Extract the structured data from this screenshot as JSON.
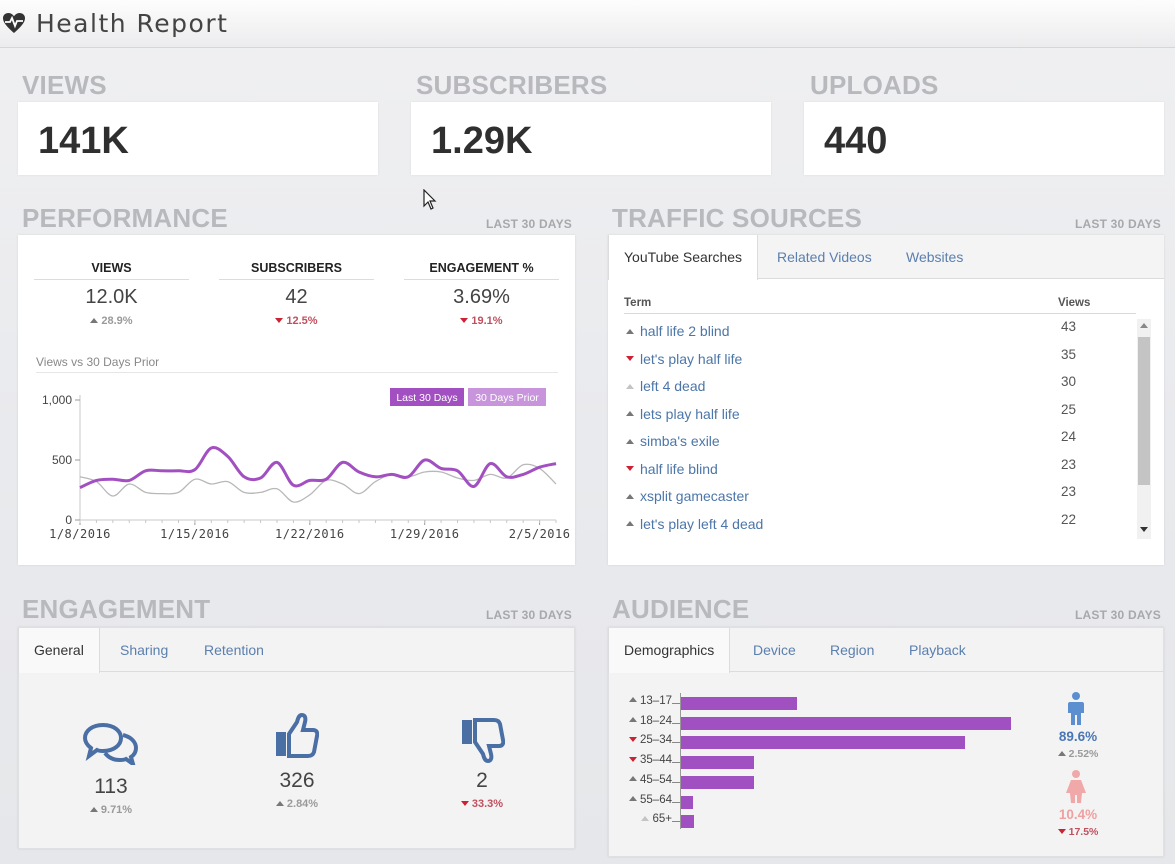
{
  "header": {
    "title": "Health Report",
    "icon": "heart-pulse-icon"
  },
  "stats": [
    {
      "label": "VIEWS",
      "value": "141K"
    },
    {
      "label": "SUBSCRIBERS",
      "value": "1.29K"
    },
    {
      "label": "UPLOADS",
      "value": "440"
    }
  ],
  "performance": {
    "title": "PERFORMANCE",
    "period": "LAST 30 DAYS",
    "metrics": [
      {
        "label": "VIEWS",
        "value": "12.0K",
        "delta": "28.9%",
        "trend": "up"
      },
      {
        "label": "SUBSCRIBERS",
        "value": "42",
        "delta": "12.5%",
        "trend": "down"
      },
      {
        "label": "ENGAGEMENT %",
        "value": "3.69%",
        "delta": "19.1%",
        "trend": "down"
      }
    ],
    "chart_label": "Views vs 30 Days Prior",
    "legend": [
      "Last 30 Days",
      "30 Days Prior"
    ]
  },
  "chart_data": {
    "type": "line",
    "title": "Views vs 30 Days Prior",
    "xlabel": "",
    "ylabel": "",
    "ylim": [
      0,
      1000
    ],
    "yticks": [
      "0",
      "500",
      "1,000"
    ],
    "xticks": [
      "1/8/2016",
      "1/15/2016",
      "1/22/2016",
      "1/29/2016",
      "2/5/2016"
    ],
    "x_start": "2016-01-08",
    "x_end": "2016-02-06",
    "series": [
      {
        "name": "Last 30 Days",
        "color": "#a24fc1",
        "values": [
          270,
          330,
          340,
          330,
          410,
          410,
          410,
          420,
          600,
          530,
          360,
          350,
          480,
          290,
          330,
          340,
          480,
          400,
          360,
          380,
          360,
          500,
          430,
          410,
          280,
          470,
          360,
          380,
          440,
          470
        ]
      },
      {
        "name": "30 Days Prior",
        "color": "#b8b8b8",
        "values": [
          360,
          320,
          200,
          300,
          230,
          220,
          230,
          340,
          300,
          320,
          230,
          230,
          260,
          150,
          210,
          330,
          300,
          220,
          320,
          380,
          360,
          400,
          400,
          350,
          330,
          380,
          350,
          460,
          430,
          300
        ]
      }
    ]
  },
  "traffic": {
    "title": "TRAFFIC SOURCES",
    "period": "LAST 30 DAYS",
    "tabs": [
      "YouTube Searches",
      "Related Videos",
      "Websites"
    ],
    "col_term": "Term",
    "col_views": "Views",
    "rows": [
      {
        "term": "half life 2 blind",
        "views": "43",
        "trend": "up"
      },
      {
        "term": "let's play half life",
        "views": "35",
        "trend": "down"
      },
      {
        "term": "left 4 dead",
        "views": "30",
        "trend": "flat"
      },
      {
        "term": "lets play half life",
        "views": "25",
        "trend": "up"
      },
      {
        "term": "simba's exile",
        "views": "24",
        "trend": "up"
      },
      {
        "term": "half life blind",
        "views": "23",
        "trend": "down"
      },
      {
        "term": "xsplit gamecaster",
        "views": "23",
        "trend": "up"
      },
      {
        "term": "let's play left 4 dead",
        "views": "22",
        "trend": "up"
      }
    ]
  },
  "engagement": {
    "title": "ENGAGEMENT",
    "period": "LAST 30 DAYS",
    "tabs": [
      "General",
      "Sharing",
      "Retention"
    ],
    "items": [
      {
        "icon": "comments-icon",
        "value": "113",
        "delta": "9.71%",
        "trend": "up"
      },
      {
        "icon": "thumbs-up-icon",
        "value": "326",
        "delta": "2.84%",
        "trend": "up"
      },
      {
        "icon": "thumbs-down-icon",
        "value": "2",
        "delta": "33.3%",
        "trend": "down"
      }
    ]
  },
  "audience": {
    "title": "AUDIENCE",
    "period": "LAST 30 DAYS",
    "tabs": [
      "Demographics",
      "Device",
      "Region",
      "Playback"
    ],
    "ages": [
      {
        "label": "13–17",
        "value": 35,
        "trend": "up"
      },
      {
        "label": "18–24",
        "value": 100,
        "trend": "up"
      },
      {
        "label": "25–34",
        "value": 86,
        "trend": "down"
      },
      {
        "label": "35–44",
        "value": 22,
        "trend": "down"
      },
      {
        "label": "45–54",
        "value": 22,
        "trend": "up"
      },
      {
        "label": "55–64",
        "value": 3.5,
        "trend": "up"
      },
      {
        "label": "65+",
        "value": 4,
        "trend": "flat"
      }
    ],
    "male": {
      "value": "89.6%",
      "delta": "2.52%",
      "trend": "up"
    },
    "female": {
      "value": "10.4%",
      "delta": "17.5%",
      "trend": "down"
    }
  }
}
